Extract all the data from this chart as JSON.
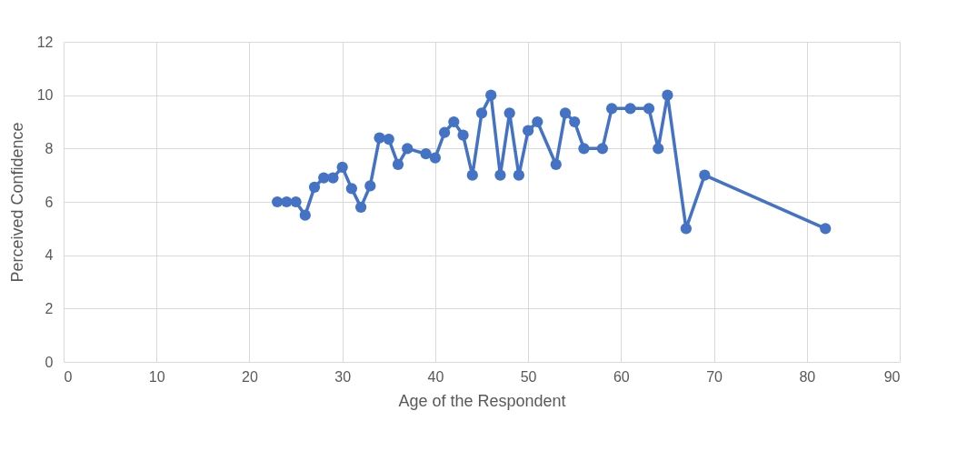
{
  "chart_data": {
    "type": "line",
    "xlabel": "Age of the Respondent",
    "ylabel": "Perceived Confidence",
    "x": [
      23,
      24,
      25,
      26,
      27,
      28,
      29,
      30,
      31,
      32,
      33,
      34,
      35,
      36,
      37,
      39,
      40,
      41,
      42,
      43,
      44,
      45,
      46,
      47,
      48,
      49,
      50,
      51,
      53,
      54,
      55,
      56,
      58,
      59,
      61,
      63,
      64,
      65,
      67,
      69,
      82
    ],
    "series": [
      {
        "color": "#4472c4",
        "values": [
          6,
          6,
          6,
          5.5,
          6.55,
          6.9,
          6.9,
          7.3,
          6.5,
          5.8,
          6.6,
          8.4,
          8.35,
          7.4,
          8,
          7.8,
          7.65,
          8.6,
          9,
          8.5,
          7,
          9.33,
          10,
          7,
          9.33,
          7,
          8.67,
          9,
          7.4,
          9.33,
          9,
          8,
          8,
          9.5,
          9.5,
          9.5,
          8,
          10,
          5,
          7,
          5
        ]
      }
    ],
    "xlim": [
      0,
      90
    ],
    "xticks": [
      0,
      10,
      20,
      30,
      40,
      50,
      60,
      70,
      80,
      90
    ],
    "ylim": [
      0,
      12
    ],
    "yticks": [
      0,
      2,
      4,
      6,
      8,
      10,
      12
    ],
    "grid": true,
    "marker": "circle",
    "line_style": "solid",
    "legend": false
  }
}
